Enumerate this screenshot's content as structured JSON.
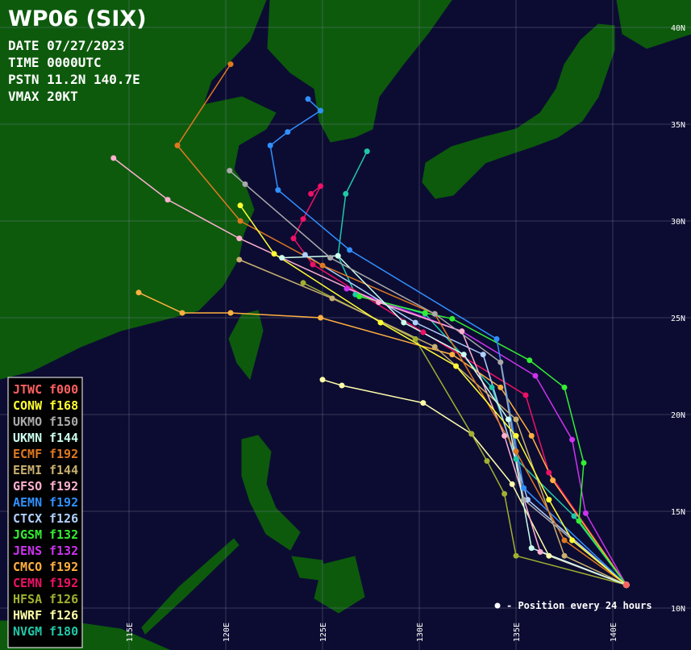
{
  "header": {
    "title": "WP06 (SIX)",
    "lines": [
      "DATE 07/27/2023",
      "TIME 0000UTC",
      "PSTN 11.2N 140.7E",
      "VMAX 20KT"
    ]
  },
  "map": {
    "lat_ticks": [
      {
        "value": 40,
        "label": "40N"
      },
      {
        "value": 35,
        "label": "35N"
      },
      {
        "value": 30,
        "label": "30N"
      },
      {
        "value": 25,
        "label": "25N"
      },
      {
        "value": 20,
        "label": "20N"
      },
      {
        "value": 15,
        "label": "15N"
      },
      {
        "value": 10,
        "label": "10N"
      }
    ],
    "lon_ticks": [
      {
        "value": 115,
        "label": "115E"
      },
      {
        "value": 120,
        "label": "120E"
      },
      {
        "value": 125,
        "label": "125E"
      },
      {
        "value": 130,
        "label": "130E"
      },
      {
        "value": 135,
        "label": "135E"
      },
      {
        "value": 140,
        "label": "140E"
      }
    ],
    "tracks": [
      {
        "name": "JTWC",
        "tau": "f000",
        "color": "#ff6060",
        "points": [
          [
            11.2,
            140.7
          ]
        ]
      },
      {
        "name": "CONW",
        "tau": "f168",
        "color": "#ffff33",
        "points": [
          [
            11.2,
            140.7
          ],
          [
            13.5,
            137.9
          ],
          [
            15.6,
            136.7
          ],
          [
            18.9,
            135
          ],
          [
            22.5,
            131.9
          ],
          [
            24.75,
            128
          ],
          [
            28.3,
            122.5
          ],
          [
            30.8,
            120.75
          ]
        ]
      },
      {
        "name": "UKMO",
        "tau": "f150",
        "color": "#aaaaaa",
        "points": [
          [
            11.2,
            140.7
          ],
          [
            15.6,
            135.4
          ],
          [
            22.7,
            134.2
          ],
          [
            25.2,
            130.8
          ],
          [
            28.1,
            125.4
          ],
          [
            31.9,
            121
          ],
          [
            32.6,
            120.2
          ]
        ]
      },
      {
        "name": "UKMN",
        "tau": "f144",
        "color": "#ccffee",
        "points": [
          [
            11.2,
            140.7
          ],
          [
            13.1,
            135.8
          ],
          [
            19.75,
            134.6
          ],
          [
            23.1,
            132.3
          ],
          [
            24.75,
            129.2
          ],
          [
            28.2,
            125.8
          ],
          [
            28.1,
            122.9
          ]
        ]
      },
      {
        "name": "ECMF",
        "tau": "f192",
        "color": "#e07820",
        "points": [
          [
            11.2,
            140.7
          ],
          [
            13.5,
            137.5
          ],
          [
            18.1,
            135
          ],
          [
            25.2,
            130.8
          ],
          [
            27.7,
            125
          ],
          [
            30,
            120.75
          ],
          [
            33.9,
            117.5
          ],
          [
            38.1,
            120.25
          ]
        ]
      },
      {
        "name": "EEMI",
        "tau": "f144",
        "color": "#c8b070",
        "points": [
          [
            11.2,
            140.7
          ],
          [
            12.7,
            137.5
          ],
          [
            19.75,
            135
          ],
          [
            23.5,
            130.8
          ],
          [
            26,
            125.5
          ],
          [
            28,
            120.7
          ]
        ]
      },
      {
        "name": "GFSO",
        "tau": "f192",
        "color": "#ffb0d0",
        "points": [
          [
            11.2,
            140.7
          ],
          [
            12.9,
            136.25
          ],
          [
            18.9,
            134.4
          ],
          [
            24.3,
            132.2
          ],
          [
            25.8,
            127.9
          ],
          [
            29.1,
            120.7
          ],
          [
            31.1,
            117
          ],
          [
            33.25,
            114.2
          ]
        ]
      },
      {
        "name": "AEMN",
        "tau": "f192",
        "color": "#3090ff",
        "points": [
          [
            11.2,
            140.7
          ],
          [
            16.2,
            135.4
          ],
          [
            23.9,
            134
          ],
          [
            28.5,
            126.4
          ],
          [
            31.6,
            122.7
          ],
          [
            33.9,
            122.3
          ],
          [
            34.6,
            123.2
          ],
          [
            35.7,
            124.9
          ],
          [
            36.3,
            124.25
          ]
        ]
      },
      {
        "name": "CTCX",
        "tau": "f126",
        "color": "#b0d0ff",
        "points": [
          [
            11.2,
            140.7
          ],
          [
            15.6,
            135.6
          ],
          [
            23.1,
            133.3
          ],
          [
            24.75,
            129.8
          ],
          [
            28.25,
            124.1
          ]
        ]
      },
      {
        "name": "JGSM",
        "tau": "f132",
        "color": "#33ee33",
        "points": [
          [
            11.2,
            140.7
          ],
          [
            14.5,
            138.25
          ],
          [
            17.5,
            138.5
          ],
          [
            21.4,
            137.5
          ],
          [
            22.8,
            135.7
          ],
          [
            24.95,
            131.7
          ],
          [
            25.25,
            130.3
          ],
          [
            26.1,
            126.9
          ]
        ]
      },
      {
        "name": "JENS",
        "tau": "f132",
        "color": "#cc33ee",
        "points": [
          [
            11.2,
            140.7
          ],
          [
            14.9,
            138.6
          ],
          [
            18.7,
            137.9
          ],
          [
            22,
            136
          ],
          [
            24.3,
            132.2
          ],
          [
            26.5,
            126.25
          ]
        ]
      },
      {
        "name": "CMCO",
        "tau": "f192",
        "color": "#ffb040",
        "points": [
          [
            11.2,
            140.7
          ],
          [
            16.6,
            136.9
          ],
          [
            18.9,
            135.8
          ],
          [
            21.4,
            134.2
          ],
          [
            23.1,
            131.7
          ],
          [
            25,
            124.9
          ],
          [
            25.25,
            120.25
          ],
          [
            25.25,
            117.75
          ],
          [
            26.3,
            115.5
          ]
        ]
      },
      {
        "name": "CEMN",
        "tau": "f192",
        "color": "#ee1166",
        "points": [
          [
            11.2,
            140.7
          ],
          [
            17,
            136.7
          ],
          [
            21,
            135.5
          ],
          [
            24.25,
            130.2
          ],
          [
            27.75,
            124.5
          ],
          [
            29.1,
            123.5
          ],
          [
            30.1,
            124
          ],
          [
            31.8,
            124.9
          ],
          [
            31.4,
            124.4
          ]
        ]
      },
      {
        "name": "HFSA",
        "tau": "f126",
        "color": "#a0b030",
        "points": [
          [
            11.2,
            140.7
          ],
          [
            12.7,
            135
          ],
          [
            15.9,
            134.4
          ],
          [
            17.6,
            133.5
          ],
          [
            19,
            132.7
          ],
          [
            23.9,
            129.8
          ],
          [
            26.8,
            124
          ]
        ]
      },
      {
        "name": "HWRF",
        "tau": "f126",
        "color": "#ffffaa",
        "points": [
          [
            11.2,
            140.7
          ],
          [
            12.7,
            136.7
          ],
          [
            16.4,
            134.8
          ],
          [
            19,
            132.7
          ],
          [
            20.6,
            130.2
          ],
          [
            21.5,
            126
          ],
          [
            21.8,
            125
          ]
        ]
      },
      {
        "name": "NVGM",
        "tau": "f180",
        "color": "#20c8a8",
        "points": [
          [
            11.2,
            140.7
          ],
          [
            14.75,
            138
          ],
          [
            17.7,
            135
          ],
          [
            21.4,
            133.75
          ],
          [
            25.2,
            130.3
          ],
          [
            26.2,
            126.7
          ],
          [
            28.2,
            125.8
          ],
          [
            31.4,
            126.2
          ],
          [
            33.6,
            127.3
          ]
        ]
      }
    ]
  },
  "note": "- Position every 24 hours"
}
